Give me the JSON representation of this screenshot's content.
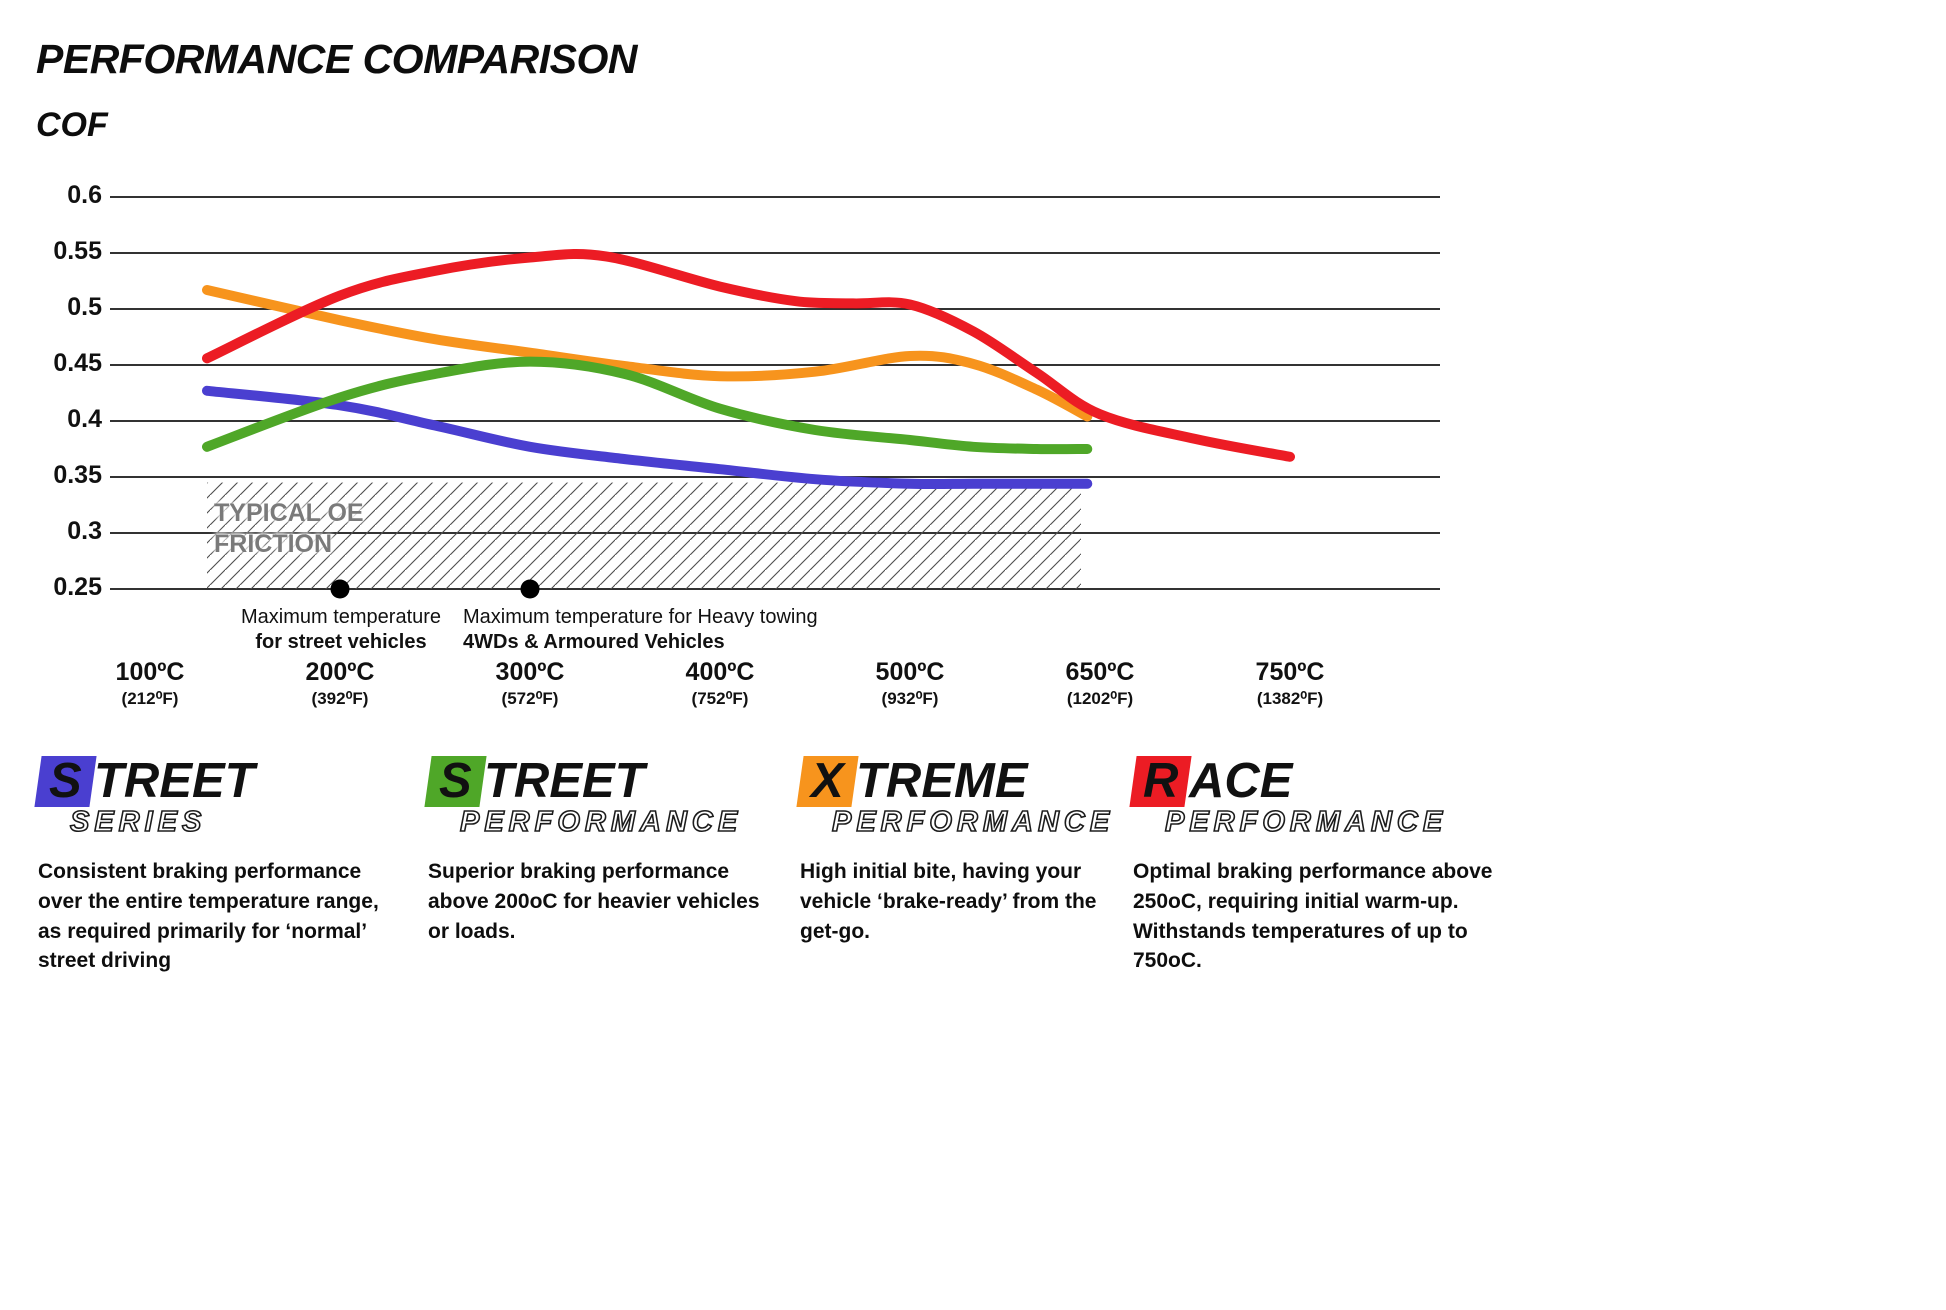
{
  "header": {
    "title": "PERFORMANCE COMPARISON",
    "y_axis_title": "COF"
  },
  "chart_data": {
    "type": "line",
    "title": "PERFORMANCE COMPARISON",
    "ylabel": "COF",
    "ylim": [
      0.25,
      0.6
    ],
    "grid": true,
    "legend_position": "bottom",
    "y_ticks": [
      0.6,
      0.55,
      0.5,
      0.45,
      0.4,
      0.35,
      0.3,
      0.25
    ],
    "x_ticks": [
      {
        "t": 100,
        "c": "100ºC",
        "f": "(212⁰F)"
      },
      {
        "t": 200,
        "c": "200ºC",
        "f": "(392⁰F)"
      },
      {
        "t": 300,
        "c": "300ºC",
        "f": "(572⁰F)"
      },
      {
        "t": 400,
        "c": "400ºC",
        "f": "(752⁰F)"
      },
      {
        "t": 500,
        "c": "500ºC",
        "f": "(932⁰F)"
      },
      {
        "t": 650,
        "c": "650ºC",
        "f": "(1202⁰F)"
      },
      {
        "t": 750,
        "c": "750ºC",
        "f": "(1382⁰F)"
      }
    ],
    "series": [
      {
        "name": "Street Series",
        "color": "#4a3fd0",
        "points": [
          [
            130,
            0.427
          ],
          [
            200,
            0.414
          ],
          [
            250,
            0.396
          ],
          [
            300,
            0.377
          ],
          [
            350,
            0.366
          ],
          [
            400,
            0.357
          ],
          [
            450,
            0.348
          ],
          [
            500,
            0.344
          ],
          [
            550,
            0.344
          ],
          [
            600,
            0.344
          ],
          [
            640,
            0.344
          ]
        ]
      },
      {
        "name": "Street Performance",
        "color": "#4fa728",
        "points": [
          [
            130,
            0.377
          ],
          [
            200,
            0.421
          ],
          [
            250,
            0.442
          ],
          [
            300,
            0.453
          ],
          [
            350,
            0.442
          ],
          [
            400,
            0.411
          ],
          [
            450,
            0.392
          ],
          [
            500,
            0.383
          ],
          [
            550,
            0.377
          ],
          [
            600,
            0.375
          ],
          [
            640,
            0.375
          ]
        ]
      },
      {
        "name": "Xtreme Performance",
        "color": "#f7941d",
        "points": [
          [
            130,
            0.517
          ],
          [
            200,
            0.49
          ],
          [
            250,
            0.473
          ],
          [
            300,
            0.461
          ],
          [
            350,
            0.449
          ],
          [
            400,
            0.44
          ],
          [
            450,
            0.444
          ],
          [
            500,
            0.458
          ],
          [
            550,
            0.451
          ],
          [
            600,
            0.428
          ],
          [
            640,
            0.404
          ]
        ]
      },
      {
        "name": "Race Performance",
        "color": "#ec1c24",
        "points": [
          [
            130,
            0.456
          ],
          [
            200,
            0.512
          ],
          [
            250,
            0.534
          ],
          [
            300,
            0.546
          ],
          [
            340,
            0.547
          ],
          [
            400,
            0.52
          ],
          [
            440,
            0.507
          ],
          [
            470,
            0.505
          ],
          [
            500,
            0.504
          ],
          [
            550,
            0.48
          ],
          [
            600,
            0.443
          ],
          [
            650,
            0.406
          ],
          [
            700,
            0.384
          ],
          [
            750,
            0.368
          ]
        ]
      }
    ],
    "oe_region": {
      "label_line1": "TYPICAL OE",
      "label_line2": "FRICTION",
      "t_min": 130,
      "t_max": 635,
      "cof_min": 0.25,
      "cof_max": 0.345
    },
    "markers": [
      {
        "t": 200,
        "cof": 0.25,
        "line1": "Maximum temperature",
        "line2": "for street vehicles"
      },
      {
        "t": 300,
        "cof": 0.25,
        "line1": "Maximum temperature for Heavy towing",
        "line2": "4WDs & Armoured Vehicles"
      }
    ]
  },
  "legend": [
    {
      "name": "street-series",
      "series": "Street Series",
      "first": "S",
      "rest": "TREET",
      "line2": "SERIES",
      "color": "#4a3fd0",
      "description": "Consistent braking performance over the entire temperature range, as required primarily for ‘normal’ street driving"
    },
    {
      "name": "street-performance",
      "series": "Street Performance",
      "first": "S",
      "rest": "TREET",
      "line2": "PERFORMANCE",
      "color": "#4fa728",
      "description": "Superior braking performance above 200oC for heavier vehicles or loads."
    },
    {
      "name": "xtreme-performance",
      "series": "Xtreme Performance",
      "first": "X",
      "rest": "TREME",
      "line2": "PERFORMANCE",
      "color": "#f7941d",
      "description": "High initial bite, having your vehicle ‘brake-ready’ from the get-go."
    },
    {
      "name": "race-performance",
      "series": "Race Performance",
      "first": "R",
      "rest": "ACE",
      "line2": "PERFORMANCE",
      "color": "#ec1c24",
      "description": "Optimal braking performance above 250oC, requiring initial warm-up. Withstands temperatures of up to 750oC."
    }
  ]
}
